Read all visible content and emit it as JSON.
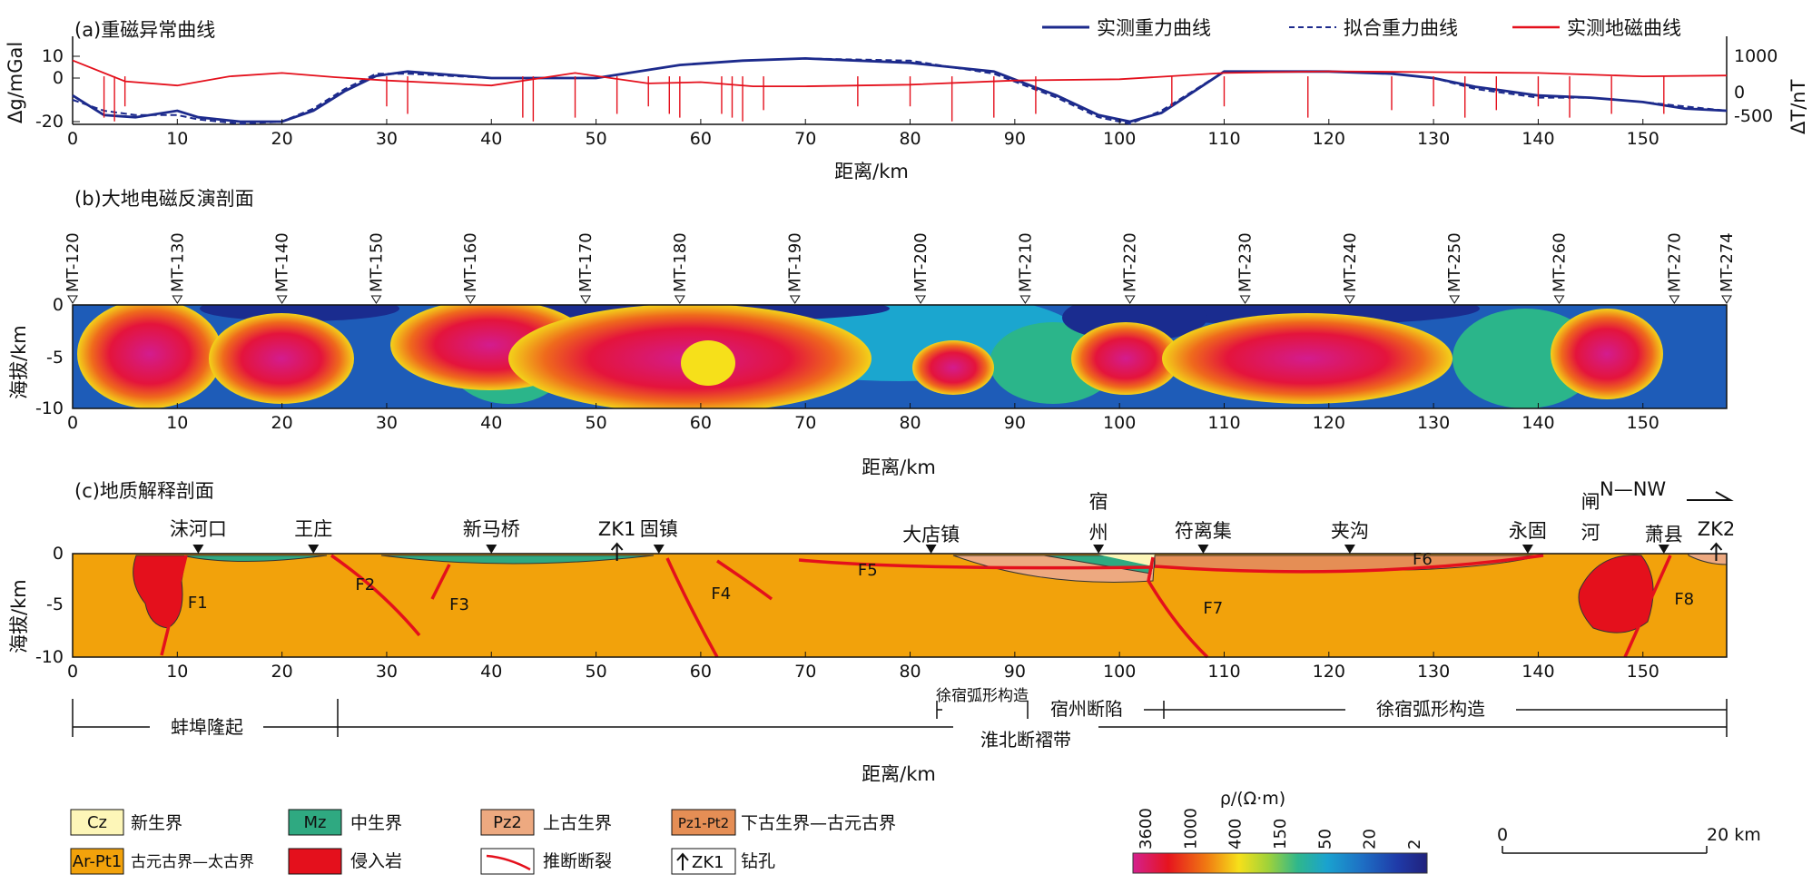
{
  "panel_a": {
    "title": "(a)重磁异常曲线",
    "ylabel_left": "Δg/mGal",
    "ylabel_right": "ΔT/nT",
    "left_ticks": [
      "10",
      "0",
      "-20"
    ],
    "right_ticks": [
      "1000",
      "0",
      "-500"
    ],
    "legend": [
      "实测重力曲线",
      "拟合重力曲线",
      "实测地磁曲线"
    ]
  },
  "panel_b": {
    "title": "(b)大地电磁反演剖面",
    "ylabel": "海拔/km",
    "y_ticks": [
      "0",
      "-5",
      "-10"
    ],
    "stations": [
      "MT-120",
      "MT-130",
      "MT-140",
      "MT-150",
      "MT-160",
      "MT-170",
      "MT-180",
      "MT-190",
      "MT-200",
      "MT-210",
      "MT-220",
      "MT-230",
      "MT-240",
      "MT-250",
      "MT-260",
      "MT-270",
      "MT-274"
    ]
  },
  "panel_c": {
    "title": "(c)地质解释剖面",
    "ylabel": "海拔/km",
    "y_ticks": [
      "0",
      "-5",
      "-10"
    ],
    "places": [
      "沫河口",
      "王庄",
      "新马桥",
      "ZK1",
      "固镇",
      "大店镇",
      "宿",
      "州",
      "符离集",
      "夹沟",
      "永固",
      "闸",
      "河",
      "萧县",
      "ZK2"
    ],
    "direction": "N—NW",
    "faults": [
      "F1",
      "F2",
      "F3",
      "F4",
      "F5",
      "F6",
      "F7",
      "F8"
    ],
    "units": {
      "bengbu": "蚌埠隆起",
      "xusu_left": "徐宿弧形构造",
      "suzhou": "宿州断陷",
      "xusu_right": "徐宿弧形构造",
      "huaibei": "淮北断褶带"
    }
  },
  "x_axis": {
    "label": "距离/km",
    "ticks": [
      "0",
      "10",
      "20",
      "30",
      "40",
      "50",
      "60",
      "70",
      "80",
      "90",
      "100",
      "110",
      "120",
      "130",
      "140",
      "150"
    ]
  },
  "legend": {
    "items": [
      {
        "code": "Cz",
        "label": "新生界",
        "color": "#fdf6b8"
      },
      {
        "code": "Mz",
        "label": "中生界",
        "color": "#2fa981"
      },
      {
        "code": "Pz2",
        "label": "上古生界",
        "color": "#eda980"
      },
      {
        "code": "Pz1-Pt2",
        "label": "下古生界—古元古界",
        "color": "#e58e55"
      },
      {
        "code": "Ar-Pt1",
        "label": "古元古界—太古界",
        "color": "#f2a20b"
      },
      {
        "code": "",
        "label": "侵入岩",
        "color": "#e4101c"
      },
      {
        "code": "",
        "label": "推断断裂",
        "color": "#e4101c"
      },
      {
        "code": "ZK1",
        "label": "钻孔",
        "color": "#000000"
      }
    ],
    "resistivity_title": "ρ/(Ω·m)",
    "resistivity_ticks": [
      "3600",
      "1000",
      "400",
      "150",
      "50",
      "20",
      "2"
    ],
    "scale": [
      "0",
      "20 km"
    ]
  },
  "colors": {
    "gravity": "#1c2a8c",
    "magnetic": "#e4101c",
    "basement": "#f2a20b",
    "pz2": "#eda980",
    "mz": "#2fa981",
    "cz": "#fdf6b8",
    "intrusion": "#e4101c"
  },
  "chart_data": [
    {
      "type": "line",
      "title": "(a)重磁异常曲线",
      "xlabel": "距离/km",
      "ylabel": "Δg/mGal",
      "xlim": [
        0,
        158
      ],
      "ylim": [
        -22,
        15
      ],
      "y2label": "ΔT/nT",
      "y2lim": [
        -700,
        1400
      ],
      "series": [
        {
          "name": "实测重力曲线",
          "x": [
            0,
            3,
            6,
            10,
            12,
            16,
            20,
            23,
            26,
            29,
            32,
            40,
            50,
            58,
            64,
            70,
            80,
            88,
            94,
            98,
            101,
            104,
            110,
            120,
            126,
            130,
            134,
            140,
            145,
            150,
            154,
            158
          ],
          "values": [
            -8,
            -17,
            -18,
            -15,
            -18,
            -20,
            -20,
            -15,
            -6,
            1,
            3,
            0,
            0,
            6,
            8,
            9,
            7,
            3,
            -8,
            -17,
            -20,
            -16,
            3,
            3,
            2,
            0,
            -4,
            -8,
            -9,
            -11,
            -14,
            -15
          ]
        },
        {
          "name": "拟合重力曲线",
          "x": [
            0,
            3,
            6,
            10,
            12,
            16,
            20,
            23,
            26,
            29,
            32,
            40,
            50,
            58,
            64,
            70,
            80,
            88,
            94,
            98,
            101,
            104,
            110,
            120,
            126,
            130,
            134,
            140,
            145,
            150,
            154,
            158
          ],
          "values": [
            -10,
            -15,
            -17,
            -17,
            -19,
            -21,
            -20,
            -14,
            -5,
            2,
            2,
            0,
            0,
            6,
            8,
            9,
            8,
            2,
            -9,
            -18,
            -21,
            -15,
            3,
            3,
            2,
            0,
            -5,
            -9,
            -9,
            -11,
            -13,
            -15
          ]
        },
        {
          "name": "实测地磁曲线",
          "x": [
            0,
            5,
            10,
            15,
            20,
            25,
            30,
            40,
            48,
            55,
            60,
            65,
            70,
            80,
            90,
            100,
            110,
            120,
            130,
            140,
            150,
            158
          ],
          "values": [
            900,
            400,
            300,
            520,
            600,
            500,
            420,
            300,
            600,
            350,
            380,
            280,
            280,
            320,
            420,
            450,
            600,
            640,
            620,
            600,
            520,
            540
          ]
        }
      ]
    },
    {
      "type": "heatmap",
      "title": "(b)大地电磁反演剖面",
      "xlabel": "距离/km",
      "ylabel": "海拔/km",
      "xlim": [
        0,
        158
      ],
      "ylim": [
        -10,
        0
      ],
      "colorbar_title": "ρ/(Ω·m)",
      "colorbar_ticks": [
        3600,
        1000,
        400,
        150,
        50,
        20,
        2
      ],
      "high_resistivity_bodies_km": [
        [
          5,
          13
        ],
        [
          14,
          26
        ],
        [
          32,
          86
        ],
        [
          58,
          70
        ],
        [
          96,
          104
        ],
        [
          107,
          133
        ],
        [
          141,
          151
        ]
      ]
    }
  ]
}
